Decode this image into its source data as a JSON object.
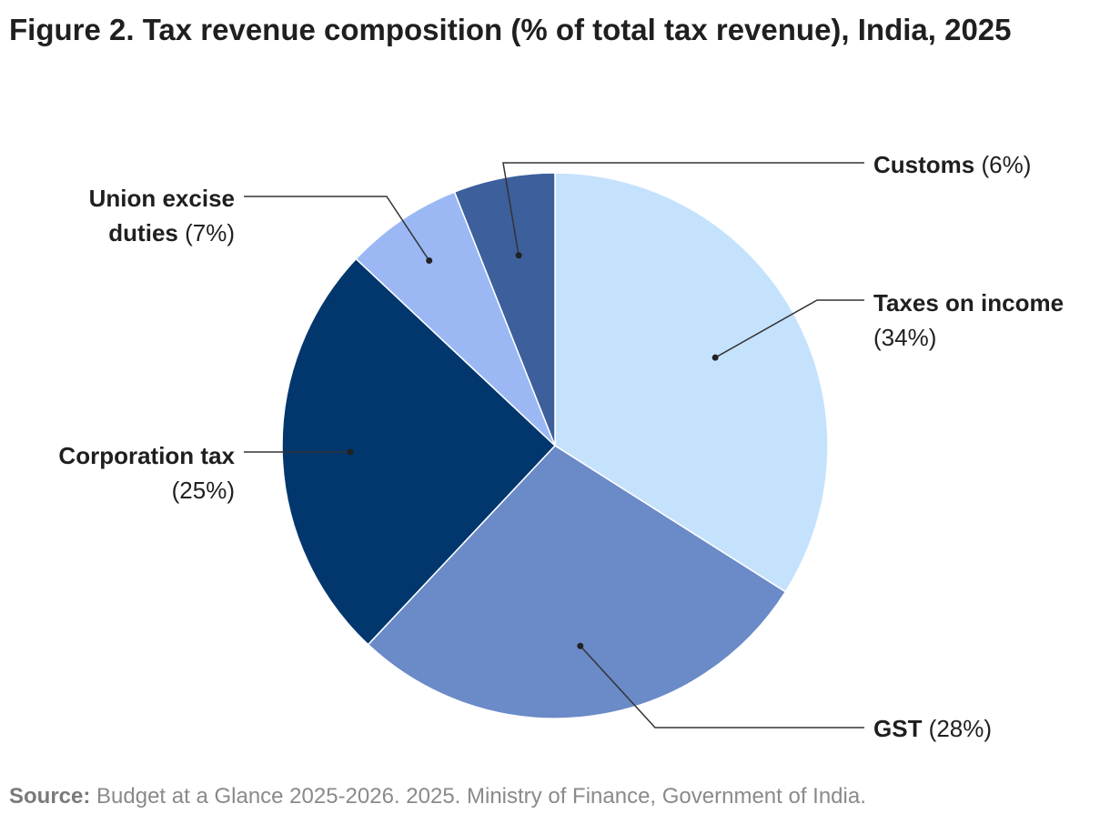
{
  "title": "Figure 2. Tax revenue composition (% of total tax revenue), India, 2025",
  "source": {
    "label": "Source:",
    "text": "Budget at a Glance 2025-2026. 2025. Ministry of Finance, Government of India."
  },
  "chart_data": {
    "type": "pie",
    "title": "Figure 2. Tax revenue composition (% of total tax revenue), India, 2025",
    "unit": "%",
    "slices": [
      {
        "label": "Taxes on income",
        "value": 34,
        "display": "(34%)",
        "color": "#c5e2fd"
      },
      {
        "label": "GST",
        "value": 28,
        "display": "(28%)",
        "color": "#6a8ac8"
      },
      {
        "label": "Corporation tax",
        "value": 25,
        "display": "(25%)",
        "color": "#02376e"
      },
      {
        "label": "Union excise duties",
        "value": 7,
        "display": "(7%)",
        "color": "#9bb8f5"
      },
      {
        "label": "Customs",
        "value": 6,
        "display": "(6%)",
        "color": "#3d5f9c"
      }
    ],
    "slice_border_color": "#ffffff",
    "leader_line_color": "#333333"
  }
}
